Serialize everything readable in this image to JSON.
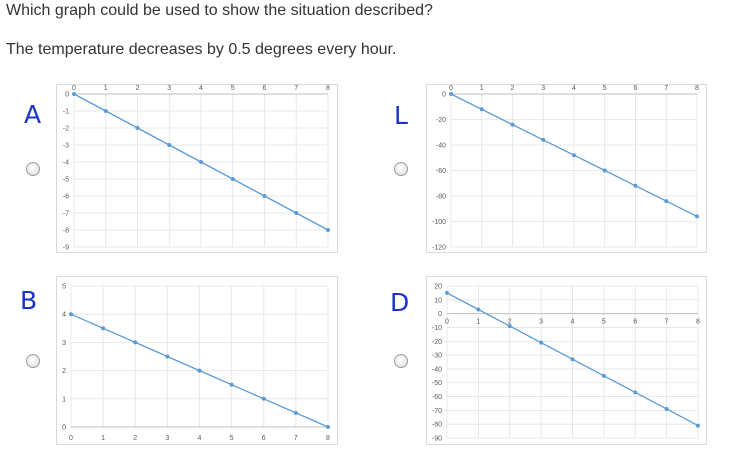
{
  "question": "Which graph could be used to show the situation described?",
  "statement": "The temperature decreases by 0.5 degrees every hour.",
  "options": [
    {
      "key": "A",
      "handwritten_letter": "A",
      "chart_data": {
        "type": "line",
        "x": [
          0,
          1,
          2,
          3,
          4,
          5,
          6,
          7,
          8
        ],
        "series": [
          {
            "values": [
              0,
              -1,
              -2,
              -3,
              -4,
              -5,
              -6,
              -7,
              -8
            ]
          }
        ],
        "ylim": [
          -9,
          0
        ],
        "xlim": [
          0,
          8
        ],
        "y_ticks": [
          "0",
          "-1",
          "-2",
          "-3",
          "-4",
          "-5",
          "-6",
          "-7",
          "-8",
          "-9"
        ],
        "x_ticks": [
          "0",
          "1",
          "2",
          "3",
          "4",
          "5",
          "6",
          "7",
          "8"
        ],
        "x_axis_position": "top",
        "grid": true,
        "line_color": "#5b9bd5"
      }
    },
    {
      "key": "C",
      "handwritten_letter": "L",
      "chart_data": {
        "type": "line",
        "x": [
          0,
          1,
          2,
          3,
          4,
          5,
          6,
          7,
          8
        ],
        "series": [
          {
            "values": [
              0,
              -12,
              -24,
              -36,
              -48,
              -60,
              -72,
              -84,
              -96
            ]
          }
        ],
        "ylim": [
          -120,
          0
        ],
        "xlim": [
          0,
          8
        ],
        "y_ticks": [
          "0",
          "-20",
          "-40",
          "-60",
          "-80",
          "-100",
          "-120"
        ],
        "x_ticks": [
          "0",
          "1",
          "2",
          "3",
          "4",
          "5",
          "6",
          "7",
          "8"
        ],
        "x_axis_position": "top",
        "grid": true,
        "line_color": "#5b9bd5"
      }
    },
    {
      "key": "B",
      "handwritten_letter": "B",
      "chart_data": {
        "type": "line",
        "x": [
          0,
          1,
          2,
          3,
          4,
          5,
          6,
          7,
          8
        ],
        "series": [
          {
            "values": [
              4,
              3.5,
              3,
              2.5,
              2,
              1.5,
              1,
              0.5,
              0
            ]
          }
        ],
        "ylim": [
          0,
          5
        ],
        "xlim": [
          0,
          8
        ],
        "y_ticks": [
          "0",
          "1",
          "2",
          "3",
          "4",
          "5"
        ],
        "x_ticks": [
          "0",
          "1",
          "2",
          "3",
          "4",
          "5",
          "6",
          "7",
          "8"
        ],
        "x_axis_position": "bottom",
        "grid": true,
        "line_color": "#5b9bd5"
      }
    },
    {
      "key": "D",
      "handwritten_letter": "D",
      "chart_data": {
        "type": "line",
        "x": [
          0,
          1,
          2,
          3,
          4,
          5,
          6,
          7,
          8
        ],
        "series": [
          {
            "values": [
              15,
              3,
              -9,
              -21,
              -33,
              -45,
              -57,
              -69,
              -81
            ]
          }
        ],
        "ylim": [
          -90,
          20
        ],
        "xlim": [
          0,
          8
        ],
        "y_ticks": [
          "20",
          "10",
          "0",
          "-10",
          "-20",
          "-30",
          "-40",
          "-50",
          "-60",
          "-70",
          "-80",
          "-90"
        ],
        "x_ticks": [
          "0",
          "1",
          "2",
          "3",
          "4",
          "5",
          "6",
          "7",
          "8"
        ],
        "x_axis_position": "at-zero",
        "grid": true,
        "line_color": "#5b9bd5"
      }
    }
  ]
}
